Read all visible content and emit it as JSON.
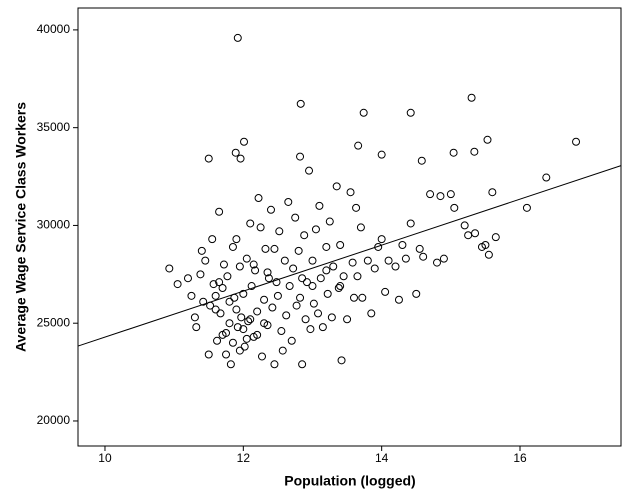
{
  "chart_data": {
    "type": "scatter",
    "x_label": "Population (logged)",
    "y_label": "Average Wage Service Class Workers",
    "xlim": [
      9.61,
      17.46
    ],
    "ylim": [
      18720,
      41120
    ],
    "xticks": [
      10,
      12,
      14,
      16
    ],
    "yticks": [
      20000,
      25000,
      30000,
      35000,
      40000
    ],
    "color": "#000000",
    "fit_line": {
      "x": [
        9.61,
        17.46
      ],
      "y": [
        23830,
        33060
      ]
    },
    "x": [
      11.92,
      12.83,
      15.3,
      13.74,
      14.42,
      15.53,
      16.81,
      12.01,
      11.89,
      11.5,
      11.96,
      12.82,
      13.66,
      14.0,
      14.58,
      15.04,
      15.34,
      16.38,
      10.93,
      11.05,
      11.2,
      11.25,
      11.3,
      11.32,
      11.38,
      11.4,
      11.42,
      11.45,
      11.5,
      11.52,
      11.55,
      11.57,
      11.6,
      11.62,
      11.65,
      11.67,
      11.7,
      11.72,
      11.75,
      11.77,
      11.8,
      11.82,
      11.85,
      11.87,
      11.9,
      11.92,
      11.95,
      11.97,
      12.0,
      12.02,
      12.05,
      12.07,
      12.1,
      12.12,
      12.15,
      12.17,
      12.2,
      12.22,
      12.25,
      12.27,
      12.3,
      12.32,
      12.35,
      12.37,
      12.4,
      12.42,
      12.45,
      12.48,
      12.5,
      12.52,
      12.55,
      12.57,
      12.6,
      12.62,
      12.65,
      12.67,
      12.7,
      12.72,
      12.75,
      12.77,
      12.8,
      12.82,
      12.85,
      12.88,
      12.9,
      12.92,
      12.95,
      12.97,
      13.0,
      13.02,
      13.05,
      13.08,
      13.1,
      13.12,
      13.15,
      13.2,
      13.22,
      13.25,
      13.28,
      13.3,
      13.35,
      13.38,
      13.4,
      13.42,
      13.45,
      13.5,
      13.55,
      13.58,
      13.6,
      13.63,
      13.65,
      13.7,
      13.72,
      13.8,
      13.85,
      13.9,
      13.95,
      14.0,
      14.05,
      14.1,
      14.2,
      14.25,
      14.3,
      14.35,
      14.42,
      14.5,
      14.55,
      14.6,
      14.7,
      14.8,
      14.85,
      14.9,
      15.0,
      15.05,
      15.2,
      15.25,
      15.35,
      15.45,
      15.5,
      15.55,
      15.6,
      15.65,
      16.1,
      11.6,
      11.7,
      11.8,
      11.9,
      12.0,
      12.1,
      12.2,
      12.3,
      11.75,
      11.85,
      11.95,
      12.05,
      12.15,
      11.65,
      12.35,
      12.45,
      13.0,
      12.85,
      13.2,
      13.4
    ],
    "y": [
      39590,
      36220,
      36530,
      35760,
      35760,
      34380,
      34280,
      34280,
      33720,
      33420,
      33420,
      33520,
      34080,
      33620,
      33310,
      33720,
      33770,
      32450,
      27800,
      27000,
      27300,
      26400,
      25300,
      24800,
      27500,
      28700,
      26100,
      28200,
      23400,
      25900,
      29300,
      27000,
      26400,
      24100,
      30700,
      25500,
      26800,
      28000,
      24500,
      27400,
      25000,
      22900,
      28900,
      26300,
      29300,
      24800,
      27900,
      25300,
      26500,
      23800,
      28300,
      25100,
      30100,
      26900,
      24300,
      27700,
      25600,
      31400,
      29900,
      23300,
      26200,
      28800,
      24900,
      27300,
      30800,
      25800,
      22900,
      27100,
      26400,
      29700,
      24600,
      23600,
      28200,
      25400,
      31200,
      26900,
      24100,
      27800,
      30400,
      25900,
      28700,
      26300,
      22900,
      29500,
      25200,
      27100,
      32800,
      24700,
      28200,
      26000,
      29800,
      25500,
      31000,
      27300,
      24800,
      28900,
      26500,
      30200,
      25300,
      27900,
      32000,
      26800,
      29000,
      23100,
      27400,
      25200,
      31700,
      28100,
      26300,
      30900,
      27400,
      29900,
      26300,
      28200,
      25500,
      27800,
      28900,
      29300,
      26600,
      28200,
      27900,
      26200,
      29000,
      28300,
      30100,
      26500,
      28800,
      28400,
      31600,
      28100,
      31500,
      28300,
      31600,
      30900,
      30000,
      29500,
      29600,
      28900,
      29000,
      28500,
      31700,
      29400,
      30900,
      25700,
      24400,
      26100,
      25700,
      24700,
      25200,
      24400,
      25000,
      23400,
      24000,
      23600,
      24200,
      28000,
      27100,
      27600,
      28800,
      26900,
      27300,
      27700,
      26900
    ]
  }
}
